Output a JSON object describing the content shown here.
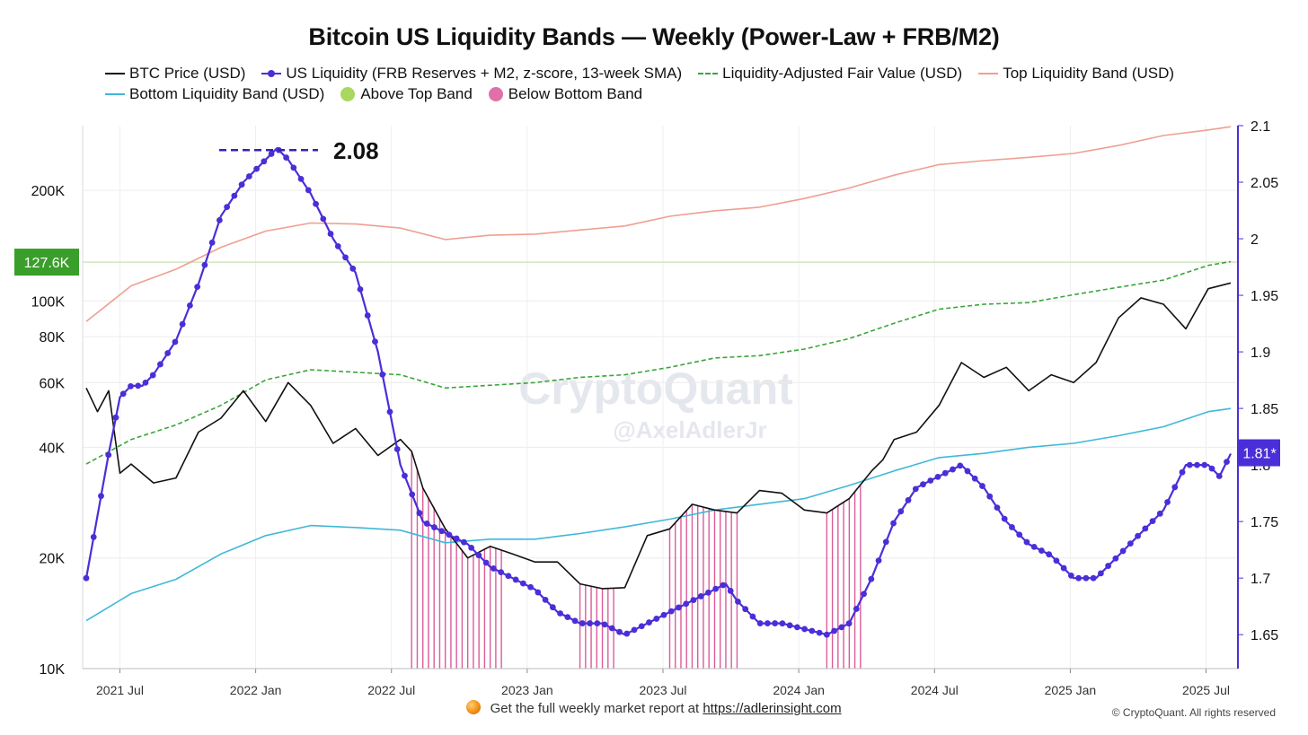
{
  "chart_data": {
    "type": "line",
    "title": "Bitcoin US Liquidity Bands — Weekly (Power-Law + FRB/M2)",
    "legend": [
      {
        "name": "BTC Price (USD)",
        "color": "#111111",
        "style": "line"
      },
      {
        "name": "US Liquidity (FRB Reserves + M2, z-score, 13-week SMA)",
        "color": "#4a2fd8",
        "style": "line-dots"
      },
      {
        "name": "Liquidity-Adjusted Fair Value (USD)",
        "color": "#3aa63a",
        "style": "dashed"
      },
      {
        "name": "Top Liquidity Band (USD)",
        "color": "#eea090",
        "style": "line"
      },
      {
        "name": "Bottom Liquidity Band (USD)",
        "color": "#3fb8d8",
        "style": "line"
      },
      {
        "name": "Above Top Band",
        "color": "#a8d860",
        "style": "circle"
      },
      {
        "name": "Below Bottom Band",
        "color": "#e070a8",
        "style": "circle"
      }
    ],
    "x_ticks": [
      "2021 Jul",
      "2022 Jan",
      "2022 Jul",
      "2023 Jan",
      "2023 Jul",
      "2024 Jan",
      "2024 Jul",
      "2025 Jan",
      "2025 Jul"
    ],
    "x_range": [
      "2021-05",
      "2025-10"
    ],
    "y_left": {
      "label": "",
      "scale": "log",
      "range": [
        10000,
        300000
      ],
      "ticks": [
        {
          "v": 10000,
          "t": "10K"
        },
        {
          "v": 20000,
          "t": "20K"
        },
        {
          "v": 40000,
          "t": "40K"
        },
        {
          "v": 60000,
          "t": "60K"
        },
        {
          "v": 80000,
          "t": "80K"
        },
        {
          "v": 100000,
          "t": "100K"
        },
        {
          "v": 200000,
          "t": "200K"
        }
      ]
    },
    "y_right": {
      "label": "",
      "scale": "linear",
      "range": [
        1.62,
        2.1
      ],
      "ticks": [
        "1.65",
        "1.7",
        "1.75",
        "1.8",
        "1.85",
        "1.9",
        "1.95",
        "2",
        "2.05",
        "2.1"
      ]
    },
    "annotations": {
      "peak_label": "2.08",
      "peak_value": 2.08,
      "current_label": "1.81*",
      "current_value": 1.81,
      "price_level_label": "127.6K",
      "price_level_value": 127600
    },
    "watermark": "CryptoQuant",
    "watermark_handle": "@AxelAdlerJr",
    "series": [
      {
        "name": "BTC Price (USD)",
        "axis": "left",
        "x": [
          0.0,
          0.5,
          1.0,
          1.5,
          2.0,
          3.0,
          4.0,
          5.0,
          6.0,
          7.0,
          8.0,
          9.0,
          10.0,
          11.0,
          12.0,
          13.0,
          14.0,
          14.5,
          15.0,
          16.0,
          17.0,
          18.0,
          19.0,
          20.0,
          21.0,
          22.0,
          23.0,
          24.0,
          25.0,
          26.0,
          27.0,
          28.0,
          29.0,
          30.0,
          31.0,
          32.0,
          33.0,
          34.0,
          35.0,
          35.5,
          36.0,
          37.0,
          38.0,
          39.0,
          40.0,
          41.0,
          42.0,
          43.0,
          44.0,
          45.0,
          46.0,
          47.0,
          48.0,
          49.0,
          50.0,
          51.0
        ],
        "values": [
          58000,
          50000,
          57000,
          34000,
          36000,
          32000,
          33000,
          44000,
          48000,
          57000,
          47000,
          60000,
          52000,
          41000,
          45000,
          38000,
          42000,
          39000,
          31000,
          24000,
          20000,
          21500,
          20500,
          19500,
          19500,
          17000,
          16500,
          16600,
          23000,
          24000,
          28000,
          27000,
          26500,
          30500,
          30000,
          27000,
          26500,
          29000,
          34500,
          37000,
          42000,
          44000,
          52000,
          68000,
          62000,
          66000,
          57000,
          63000,
          60000,
          68000,
          90000,
          102000,
          98000,
          84000,
          108000,
          112000
        ]
      },
      {
        "name": "US Liquidity (FRB Reserves + M2, z-score, 13-week SMA)",
        "axis": "right",
        "x": [
          0.0,
          1.0,
          1.5,
          2.0,
          2.5,
          3.0,
          4.0,
          5.0,
          6.0,
          7.0,
          8.0,
          8.5,
          9.0,
          10.0,
          11.0,
          12.0,
          13.0,
          14.0,
          15.0,
          16.0,
          17.0,
          18.0,
          19.0,
          20.0,
          21.0,
          22.0,
          23.0,
          24.0,
          25.0,
          26.0,
          27.0,
          28.0,
          28.5,
          29.0,
          30.0,
          31.0,
          32.0,
          33.0,
          34.0,
          35.0,
          36.0,
          37.0,
          38.0,
          39.0,
          40.0,
          41.0,
          42.0,
          43.0,
          44.0,
          45.0,
          46.0,
          47.0,
          48.0,
          49.0,
          50.0,
          50.5,
          51.0
        ],
        "values": [
          1.7,
          1.81,
          1.86,
          1.87,
          1.87,
          1.88,
          1.91,
          1.96,
          2.02,
          2.05,
          2.07,
          2.08,
          2.07,
          2.04,
          2.0,
          1.97,
          1.9,
          1.8,
          1.75,
          1.74,
          1.73,
          1.71,
          1.7,
          1.69,
          1.67,
          1.66,
          1.66,
          1.65,
          1.66,
          1.67,
          1.68,
          1.69,
          1.695,
          1.68,
          1.66,
          1.66,
          1.655,
          1.65,
          1.66,
          1.7,
          1.75,
          1.78,
          1.79,
          1.8,
          1.78,
          1.75,
          1.73,
          1.72,
          1.7,
          1.7,
          1.72,
          1.74,
          1.76,
          1.8,
          1.8,
          1.79,
          1.81
        ]
      },
      {
        "name": "Liquidity-Adjusted Fair Value (USD)",
        "axis": "left",
        "style": "dashed",
        "x": [
          0.0,
          2.0,
          4.0,
          6.0,
          8.0,
          10.0,
          12.0,
          14.0,
          16.0,
          18.0,
          20.0,
          22.0,
          24.0,
          26.0,
          28.0,
          30.0,
          32.0,
          34.0,
          36.0,
          38.0,
          40.0,
          42.0,
          44.0,
          46.0,
          48.0,
          50.0,
          51.0
        ],
        "values": [
          36000,
          42000,
          46000,
          52000,
          61000,
          65000,
          64000,
          63000,
          58000,
          59000,
          60000,
          62000,
          63000,
          66000,
          70000,
          71000,
          74000,
          79000,
          87000,
          95000,
          98000,
          99000,
          104000,
          109000,
          114000,
          125000,
          128000
        ]
      },
      {
        "name": "Top Liquidity Band (USD)",
        "axis": "left",
        "x": [
          0.0,
          2.0,
          4.0,
          6.0,
          8.0,
          10.0,
          12.0,
          14.0,
          16.0,
          18.0,
          20.0,
          22.0,
          24.0,
          26.0,
          28.0,
          30.0,
          32.0,
          34.0,
          36.0,
          38.0,
          40.0,
          42.0,
          44.0,
          46.0,
          48.0,
          50.0,
          51.0
        ],
        "values": [
          88000,
          110000,
          122000,
          140000,
          155000,
          163000,
          162000,
          158000,
          147000,
          151000,
          152000,
          156000,
          160000,
          170000,
          176000,
          180000,
          190000,
          203000,
          220000,
          235000,
          241000,
          246000,
          252000,
          265000,
          282000,
          292000,
          298000
        ]
      },
      {
        "name": "Bottom Liquidity Band (USD)",
        "axis": "left",
        "x": [
          0.0,
          2.0,
          4.0,
          6.0,
          8.0,
          10.0,
          12.0,
          14.0,
          16.0,
          18.0,
          20.0,
          22.0,
          24.0,
          26.0,
          28.0,
          30.0,
          32.0,
          34.0,
          36.0,
          38.0,
          40.0,
          42.0,
          44.0,
          46.0,
          48.0,
          50.0,
          51.0
        ],
        "values": [
          13500,
          16000,
          17500,
          20500,
          23000,
          24500,
          24200,
          23800,
          22000,
          22500,
          22500,
          23300,
          24300,
          25500,
          27000,
          28000,
          29000,
          31500,
          34500,
          37500,
          38500,
          40000,
          41000,
          43000,
          45500,
          50000,
          51000
        ]
      }
    ],
    "below_bottom_band_ranges": [
      [
        14.5,
        18.5
      ],
      [
        22.0,
        23.5
      ],
      [
        26.0,
        29.0
      ],
      [
        33.0,
        34.5
      ]
    ]
  },
  "footer": {
    "text": "Get the full weekly market report at",
    "link": "https://adlerinsight.com"
  },
  "copyright": "© CryptoQuant. All rights reserved"
}
